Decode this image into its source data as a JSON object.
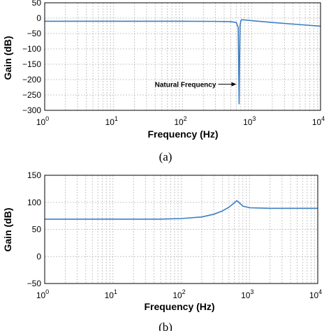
{
  "chart_data": [
    {
      "type": "line",
      "caption": "(a)",
      "xlabel": "Frequency (Hz)",
      "ylabel": "Gain (dB)",
      "xscale": "log",
      "xlim": [
        1,
        10000
      ],
      "ylim": [
        -300,
        50
      ],
      "xticks": [
        {
          "base": "10",
          "exp": "0"
        },
        {
          "base": "10",
          "exp": "1"
        },
        {
          "base": "10",
          "exp": "2"
        },
        {
          "base": "10",
          "exp": "3"
        },
        {
          "base": "10",
          "exp": "4"
        }
      ],
      "yticks": [
        "50",
        "0",
        "−50",
        "−100",
        "−150",
        "−200",
        "−250",
        "−300"
      ],
      "grid": true,
      "color": "#3a7fc4",
      "series": [
        {
          "x": [
            1,
            10,
            100,
            300,
            500,
            600,
            640,
            660,
            680,
            700,
            720,
            800,
            1000,
            2000,
            5000,
            10000
          ],
          "y": [
            -10,
            -10,
            -10,
            -10.5,
            -11.5,
            -14,
            -30,
            -280,
            -25,
            -8,
            -5,
            -6,
            -8,
            -14,
            -21,
            -26
          ]
        }
      ],
      "annotations": [
        {
          "text": "Natural Frequency",
          "x": 660,
          "y": -215
        }
      ]
    },
    {
      "type": "line",
      "caption": "(b)",
      "xlabel": "Frequency (Hz)",
      "ylabel": "Gain (dB)",
      "xscale": "log",
      "xlim": [
        1,
        10000
      ],
      "ylim": [
        -50,
        150
      ],
      "xticks": [
        {
          "base": "10",
          "exp": "0"
        },
        {
          "base": "10",
          "exp": "1"
        },
        {
          "base": "10",
          "exp": "2"
        },
        {
          "base": "10",
          "exp": "3"
        },
        {
          "base": "10",
          "exp": "4"
        }
      ],
      "yticks": [
        "150",
        "100",
        "50",
        "0",
        "−50"
      ],
      "grid": true,
      "color": "#3a7fc4",
      "series": [
        {
          "x": [
            1,
            10,
            50,
            100,
            200,
            300,
            400,
            500,
            600,
            650,
            700,
            800,
            1000,
            2000,
            10000
          ],
          "y": [
            69,
            69,
            69,
            70,
            73,
            78,
            84,
            91,
            99,
            103,
            100,
            93,
            90,
            89,
            89
          ]
        }
      ]
    }
  ]
}
